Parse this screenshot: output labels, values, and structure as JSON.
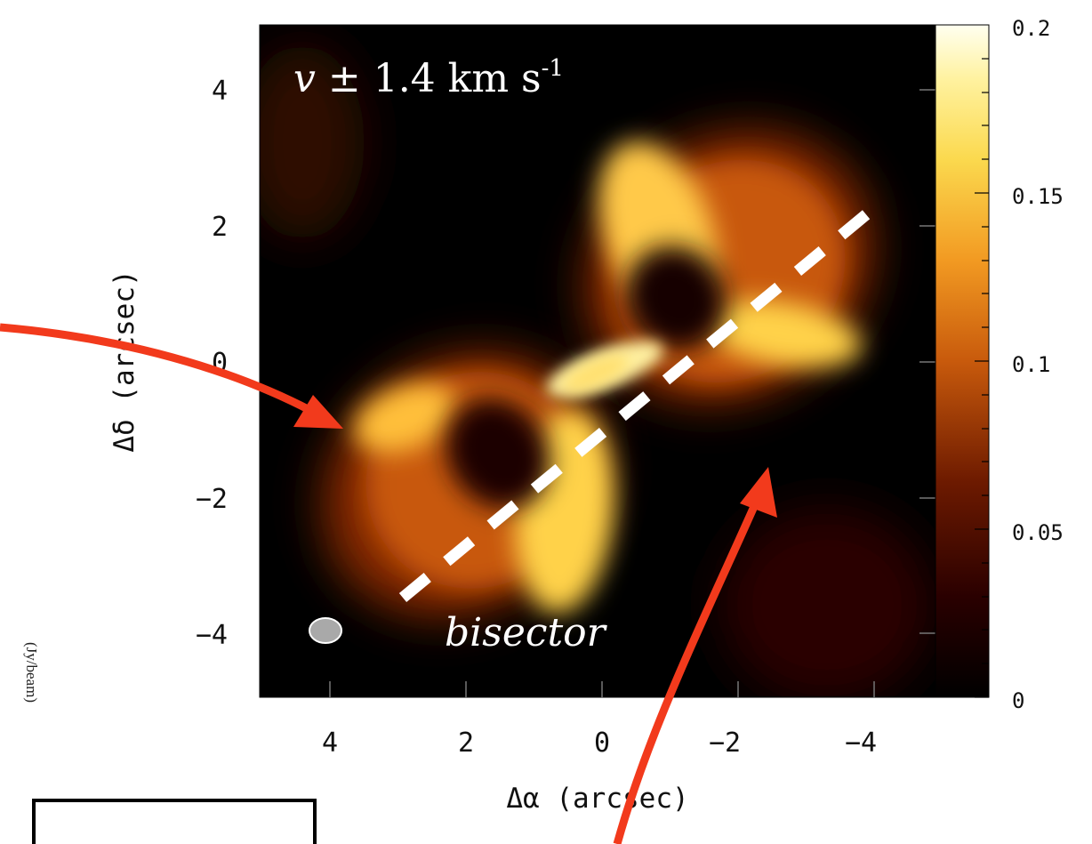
{
  "figure": {
    "velocity_label": "𝑣 ± 1.4 km s",
    "velocity_superscript": "-1",
    "bisector_label": "bisector",
    "x_axis_title": "Δα (arcsec)",
    "y_axis_title": "Δδ (arcsec)",
    "x_ticks": [
      "4",
      "2",
      "0",
      "−2",
      "−4"
    ],
    "y_ticks": [
      "4",
      "2",
      "0",
      "−2",
      "−4"
    ],
    "colorbar_ticks": [
      "0.2",
      "0.15",
      "0.1",
      "0.05",
      "0"
    ],
    "colorbar_unit": "(Jy/beam)"
  },
  "colors": {
    "background": "#000000",
    "emission_bright": "#ffd44a",
    "emission_mid": "#e46a10",
    "emission_faint": "#5a1400",
    "bisector_line": "#ffffff",
    "arrow": "#f23a1c",
    "beam": "#a9a9a9"
  }
}
